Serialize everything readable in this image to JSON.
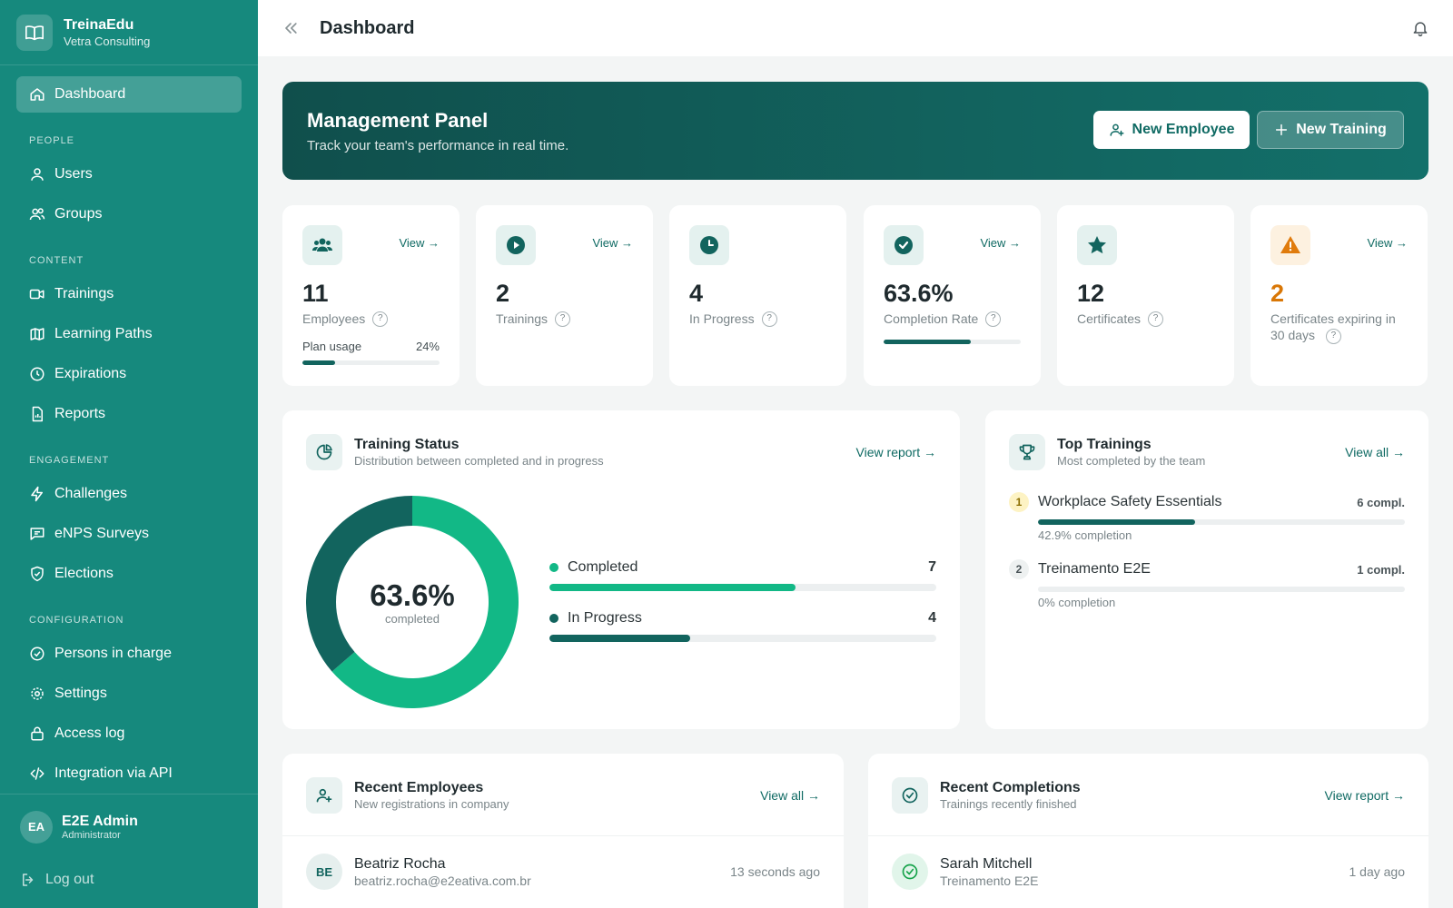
{
  "brand": {
    "name": "TreinaEdu",
    "company": "Vetra Consulting"
  },
  "sidebar": {
    "active": {
      "label": "Dashboard"
    },
    "sections": {
      "people": {
        "title": "PEOPLE",
        "items": [
          "Users",
          "Groups"
        ]
      },
      "content": {
        "title": "CONTENT",
        "items": [
          "Trainings",
          "Learning Paths",
          "Expirations",
          "Reports"
        ]
      },
      "engagement": {
        "title": "ENGAGEMENT",
        "items": [
          "Challenges",
          "eNPS Surveys",
          "Elections"
        ]
      },
      "configuration": {
        "title": "CONFIGURATION",
        "items": [
          "Persons in charge",
          "Settings",
          "Access log",
          "Integration via API"
        ]
      }
    },
    "user": {
      "initials": "EA",
      "name": "E2E Admin",
      "role": "Administrator"
    },
    "logout": "Log out"
  },
  "header": {
    "title": "Dashboard"
  },
  "banner": {
    "title": "Management Panel",
    "subtitle": "Track your team's performance in real time.",
    "new_employee": "New Employee",
    "new_training": "New Training"
  },
  "stats": [
    {
      "value": "11",
      "label": "Employees",
      "view": "View →",
      "plan_label": "Plan usage",
      "plan_value": "24%",
      "plan_fraction": 0.24
    },
    {
      "value": "2",
      "label": "Trainings",
      "view": "View →"
    },
    {
      "value": "4",
      "label": "In Progress"
    },
    {
      "value": "63.6%",
      "label": "Completion Rate",
      "view": "View →",
      "fraction": 0.636
    },
    {
      "value": "12",
      "label": "Certificates"
    },
    {
      "value": "2",
      "label": "Certificates expiring in 30 days",
      "view": "View →"
    }
  ],
  "training_status": {
    "title": "Training Status",
    "subtitle": "Distribution between completed and in progress",
    "link": "View report →",
    "center_value": "63.6%",
    "center_caption": "completed",
    "colors": {
      "completed": "#12b886",
      "in_progress": "#12645e"
    }
  },
  "chart_data": {
    "type": "pie",
    "categories": [
      "Completed",
      "In Progress"
    ],
    "values": [
      7,
      4
    ]
  },
  "top_trainings": {
    "title": "Top Trainings",
    "subtitle": "Most completed by the team",
    "link": "View all →",
    "items": [
      {
        "rank": "1",
        "name": "Workplace Safety Essentials",
        "compl": "6 compl.",
        "pct_text": "42.9% completion",
        "fraction": 0.429
      },
      {
        "rank": "2",
        "name": "Treinamento E2E",
        "compl": "1 compl.",
        "pct_text": "0% completion",
        "fraction": 0
      }
    ]
  },
  "recent_employees": {
    "title": "Recent Employees",
    "subtitle": "New registrations in company",
    "link": "View all →",
    "rows": [
      {
        "initials": "BE",
        "name": "Beatriz Rocha",
        "email": "beatriz.rocha@e2eativa.com.br",
        "time": "13 seconds ago"
      }
    ]
  },
  "recent_completions": {
    "title": "Recent Completions",
    "subtitle": "Trainings recently finished",
    "link": "View report →",
    "rows": [
      {
        "name": "Sarah Mitchell",
        "training": "Treinamento E2E",
        "time": "1 day ago"
      }
    ]
  }
}
